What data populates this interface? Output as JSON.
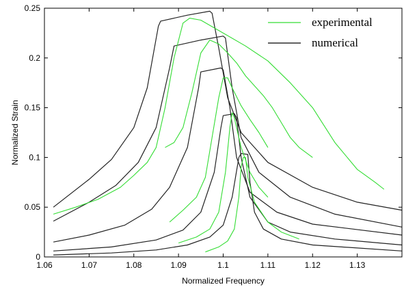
{
  "chart_data": {
    "type": "line",
    "title": "",
    "xlabel": "Normalized Frequency",
    "ylabel": "Normalized Strain",
    "xlim": [
      1.06,
      1.14
    ],
    "ylim": [
      0,
      0.25
    ],
    "x_ticks": [
      "1.06",
      "1.07",
      "1.08",
      "1.09",
      "1.1",
      "1.11",
      "1.12",
      "1.13"
    ],
    "y_ticks": [
      "0",
      "0.05",
      "0.1",
      "0.15",
      "0.2",
      "0.25"
    ],
    "grid": false,
    "legend_position": "top-right",
    "legend": [
      {
        "label": "experimental",
        "color": "#33dd33"
      },
      {
        "label": "numerical",
        "color": "#000000"
      }
    ],
    "series": [
      {
        "group": "numerical",
        "color": "#222222",
        "x": [
          1.062,
          1.07,
          1.075,
          1.08,
          1.083,
          1.0855,
          1.086,
          1.092,
          1.097,
          1.0975,
          1.099,
          1.101,
          1.104,
          1.11,
          1.12,
          1.13,
          1.14
        ],
        "y": [
          0.05,
          0.078,
          0.098,
          0.13,
          0.17,
          0.232,
          0.237,
          0.243,
          0.247,
          0.245,
          0.21,
          0.16,
          0.125,
          0.095,
          0.07,
          0.055,
          0.047
        ]
      },
      {
        "group": "numerical",
        "color": "#222222",
        "x": [
          1.062,
          1.07,
          1.076,
          1.081,
          1.085,
          1.088,
          1.089,
          1.095,
          1.1,
          1.1005,
          1.102,
          1.104,
          1.108,
          1.115,
          1.125,
          1.14
        ],
        "y": [
          0.036,
          0.055,
          0.072,
          0.095,
          0.13,
          0.19,
          0.212,
          0.218,
          0.222,
          0.22,
          0.17,
          0.12,
          0.085,
          0.06,
          0.043,
          0.03
        ]
      },
      {
        "group": "numerical",
        "color": "#222222",
        "x": [
          1.062,
          1.07,
          1.078,
          1.084,
          1.088,
          1.092,
          1.0945,
          1.095,
          1.0995,
          1.1,
          1.1015,
          1.103,
          1.106,
          1.112,
          1.12,
          1.14
        ],
        "y": [
          0.015,
          0.022,
          0.032,
          0.048,
          0.07,
          0.11,
          0.17,
          0.186,
          0.19,
          0.188,
          0.15,
          0.1,
          0.065,
          0.045,
          0.033,
          0.022
        ]
      },
      {
        "group": "numerical",
        "color": "#222222",
        "x": [
          1.062,
          1.075,
          1.085,
          1.091,
          1.095,
          1.098,
          1.0995,
          1.1,
          1.1025,
          1.103,
          1.104,
          1.106,
          1.11,
          1.115,
          1.125,
          1.14
        ],
        "y": [
          0.006,
          0.01,
          0.017,
          0.027,
          0.045,
          0.085,
          0.13,
          0.142,
          0.144,
          0.14,
          0.1,
          0.06,
          0.035,
          0.025,
          0.018,
          0.012
        ]
      },
      {
        "group": "numerical",
        "color": "#222222",
        "x": [
          1.062,
          1.075,
          1.085,
          1.092,
          1.097,
          1.1,
          1.102,
          1.1035,
          1.104,
          1.1055,
          1.106,
          1.107,
          1.109,
          1.113,
          1.12,
          1.14
        ],
        "y": [
          0.002,
          0.004,
          0.007,
          0.012,
          0.02,
          0.032,
          0.06,
          0.1,
          0.104,
          0.103,
          0.075,
          0.045,
          0.028,
          0.018,
          0.012,
          0.006
        ]
      },
      {
        "group": "experimental",
        "color": "#33dd33",
        "x": [
          1.062,
          1.067,
          1.072,
          1.077,
          1.08,
          1.083,
          1.085,
          1.087,
          1.089,
          1.091,
          1.0925,
          1.095,
          1.1,
          1.105,
          1.11,
          1.115,
          1.12,
          1.125,
          1.13,
          1.134,
          1.136
        ],
        "y": [
          0.043,
          0.05,
          0.058,
          0.07,
          0.082,
          0.095,
          0.11,
          0.15,
          0.2,
          0.235,
          0.24,
          0.238,
          0.225,
          0.212,
          0.197,
          0.175,
          0.15,
          0.115,
          0.088,
          0.075,
          0.068
        ]
      },
      {
        "group": "experimental",
        "color": "#33dd33",
        "x": [
          1.087,
          1.089,
          1.091,
          1.093,
          1.095,
          1.097,
          1.099,
          1.101,
          1.103,
          1.105,
          1.107,
          1.109,
          1.111,
          1.113,
          1.115,
          1.117,
          1.12
        ],
        "y": [
          0.11,
          0.115,
          0.13,
          0.165,
          0.205,
          0.218,
          0.214,
          0.205,
          0.195,
          0.182,
          0.172,
          0.162,
          0.15,
          0.135,
          0.12,
          0.11,
          0.1
        ]
      },
      {
        "group": "experimental",
        "color": "#33dd33",
        "x": [
          1.088,
          1.091,
          1.094,
          1.096,
          1.0975,
          1.099,
          1.1,
          1.101,
          1.102,
          1.104,
          1.106,
          1.108,
          1.11
        ],
        "y": [
          0.035,
          0.047,
          0.06,
          0.08,
          0.12,
          0.16,
          0.18,
          0.18,
          0.17,
          0.152,
          0.138,
          0.125,
          0.11
        ]
      },
      {
        "group": "experimental",
        "color": "#33dd33",
        "x": [
          1.09,
          1.094,
          1.097,
          1.099,
          1.1005,
          1.1015,
          1.102,
          1.1025,
          1.104,
          1.106,
          1.108,
          1.11
        ],
        "y": [
          0.014,
          0.02,
          0.028,
          0.045,
          0.085,
          0.13,
          0.145,
          0.14,
          0.11,
          0.085,
          0.07,
          0.06
        ]
      },
      {
        "group": "experimental",
        "color": "#33dd33",
        "x": [
          1.096,
          1.099,
          1.101,
          1.1025,
          1.1035,
          1.104,
          1.1045,
          1.105,
          1.1055,
          1.107,
          1.11,
          1.113,
          1.117
        ],
        "y": [
          0.005,
          0.01,
          0.016,
          0.028,
          0.06,
          0.09,
          0.1,
          0.1,
          0.08,
          0.055,
          0.035,
          0.025,
          0.018
        ]
      }
    ]
  }
}
